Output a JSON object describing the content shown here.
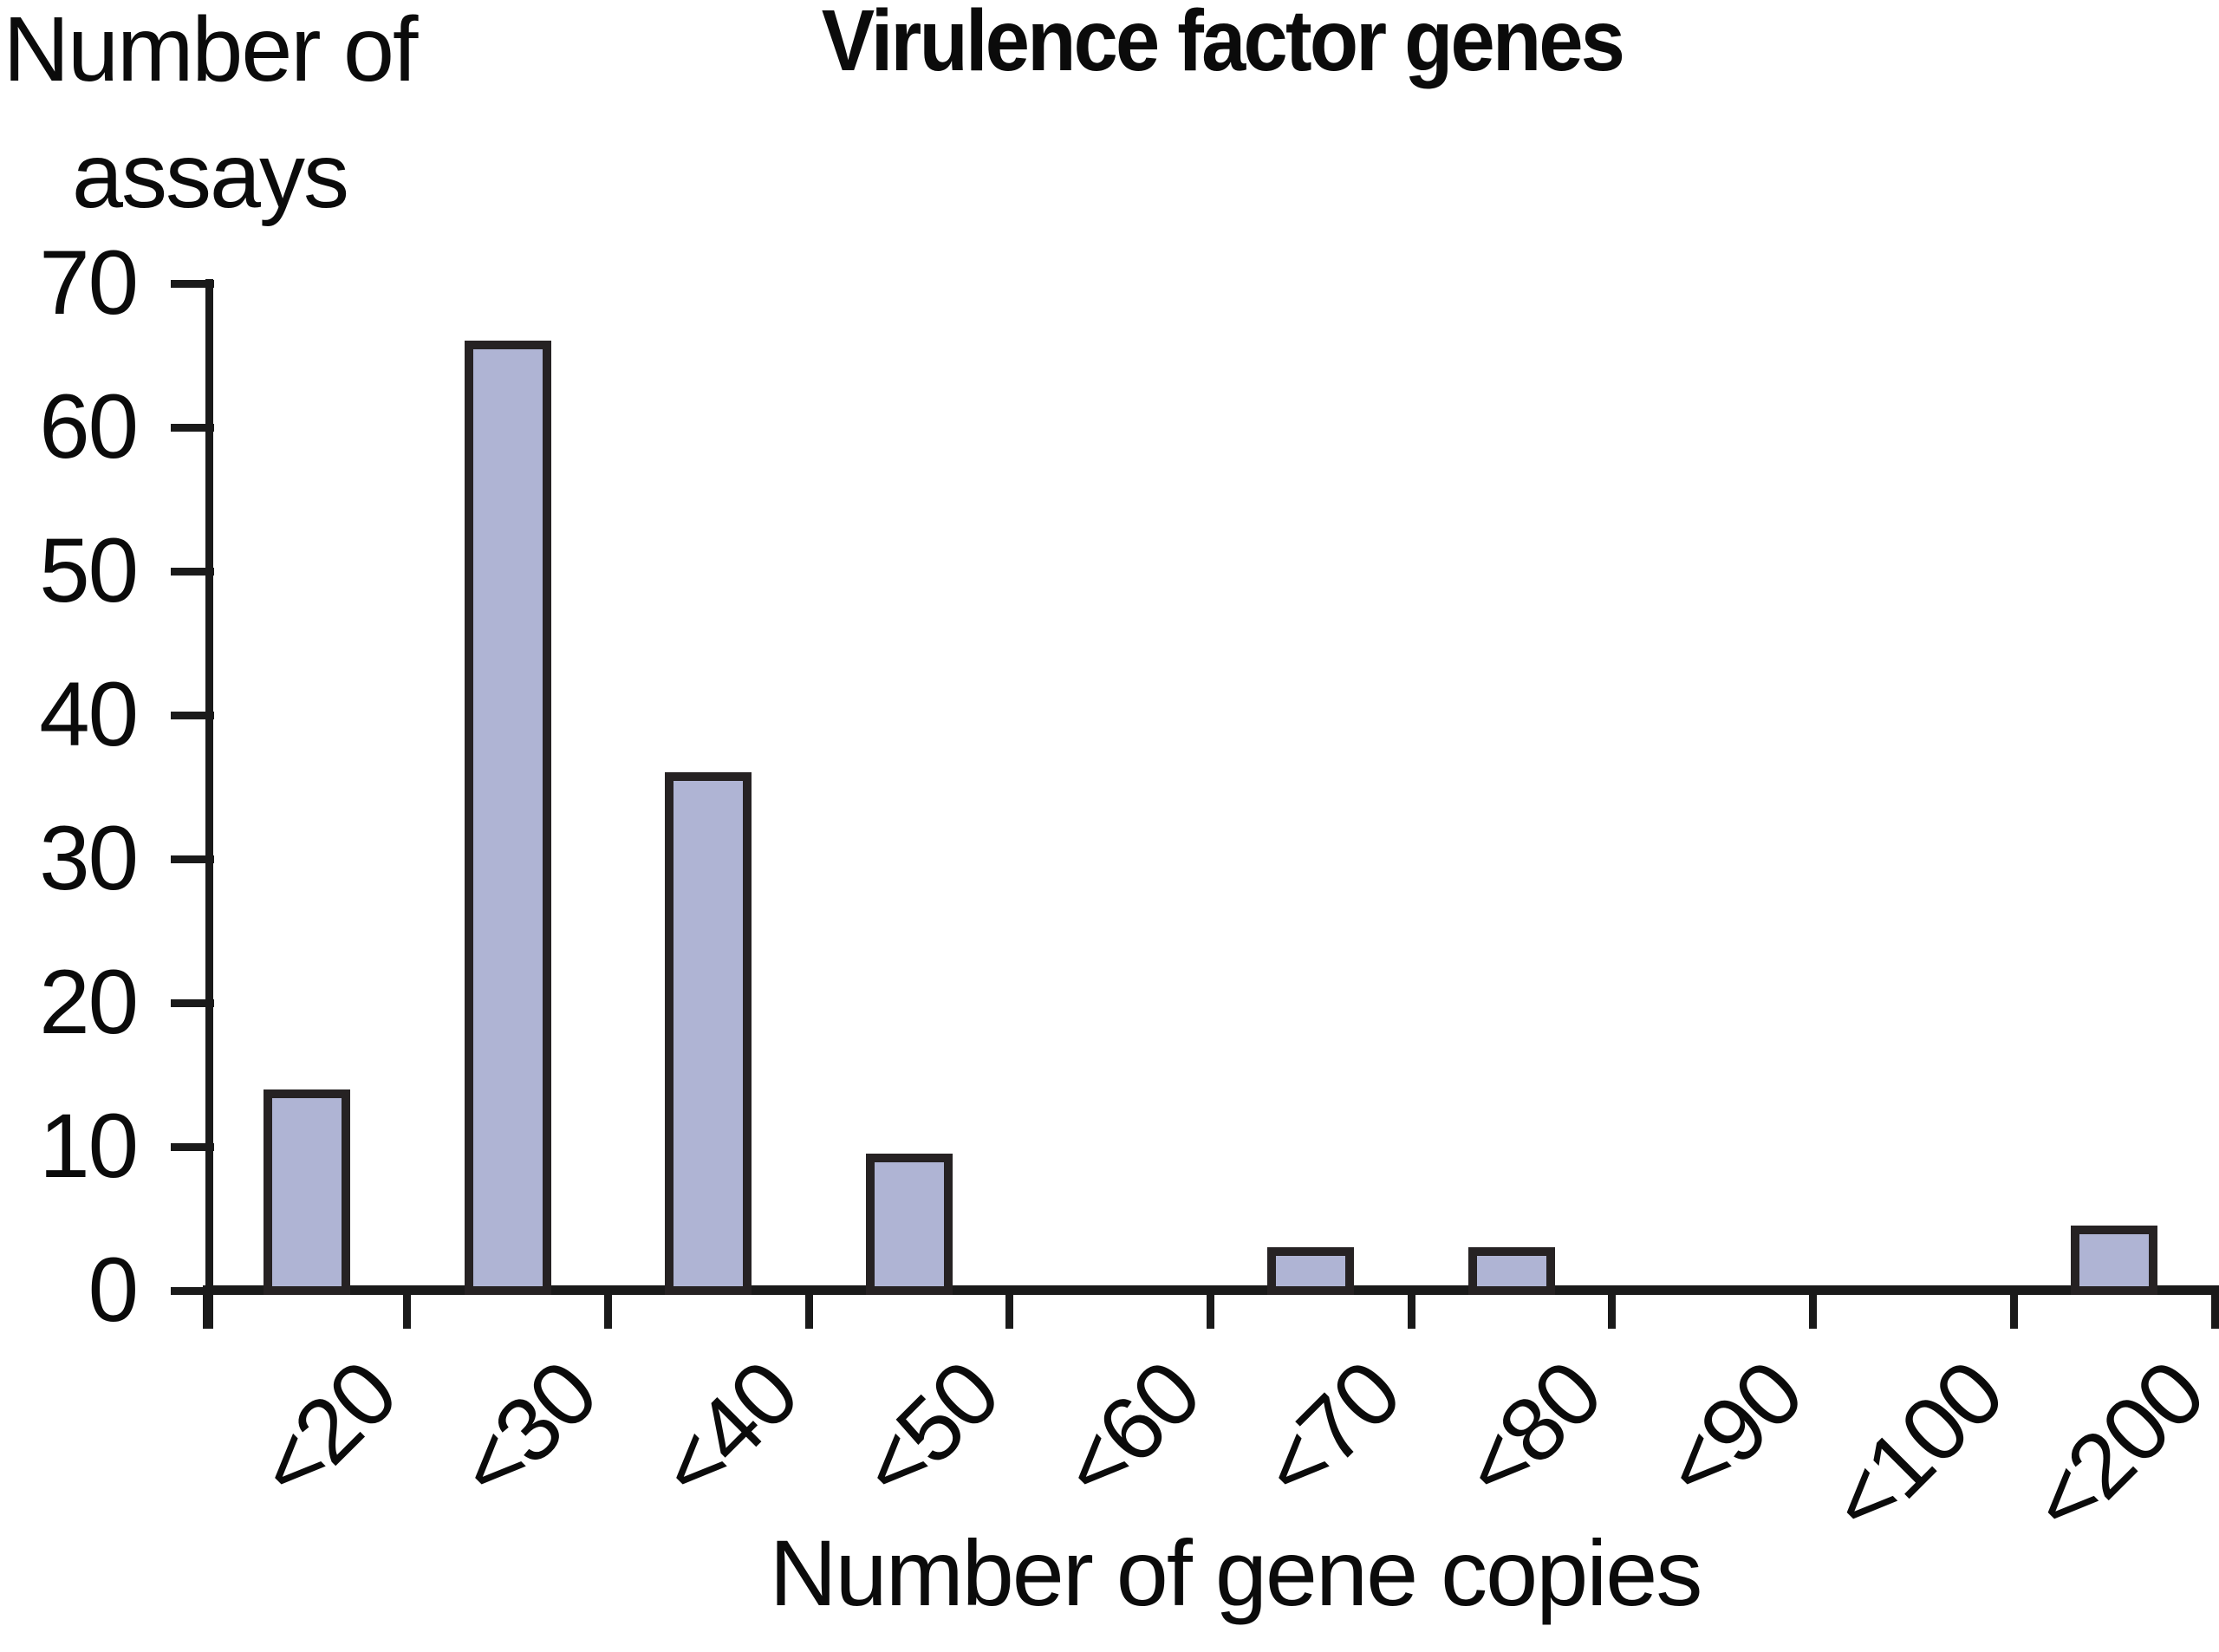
{
  "figure": {
    "title": "Virulence factor genes",
    "y_axis_title_line1": "Number of",
    "y_axis_title_line2": "assays",
    "x_axis_title": "Number of gene copies"
  },
  "colors": {
    "bar_fill": "#AFB4D4",
    "bar_border": "#262223",
    "axis": "#1A1A1A",
    "text": "#0B0B0B",
    "background": "#FFFFFF"
  },
  "chart_data": {
    "type": "bar",
    "title": "Virulence factor genes",
    "xlabel": "Number of gene copies",
    "ylabel": "Number of assays",
    "categories": [
      "<20",
      "<30",
      "<40",
      "<50",
      "<60",
      "<70",
      "<80",
      "<90",
      "<100",
      "<200"
    ],
    "values": [
      14,
      66,
      36,
      9.5,
      0,
      3,
      3,
      0,
      0,
      4.5
    ],
    "ylim": [
      0,
      70
    ],
    "yticks": [
      0,
      10,
      20,
      30,
      40,
      50,
      60,
      70
    ],
    "grid": false,
    "legend": null,
    "x_tick_label_rotation_deg": 45,
    "bar_outline": true
  }
}
